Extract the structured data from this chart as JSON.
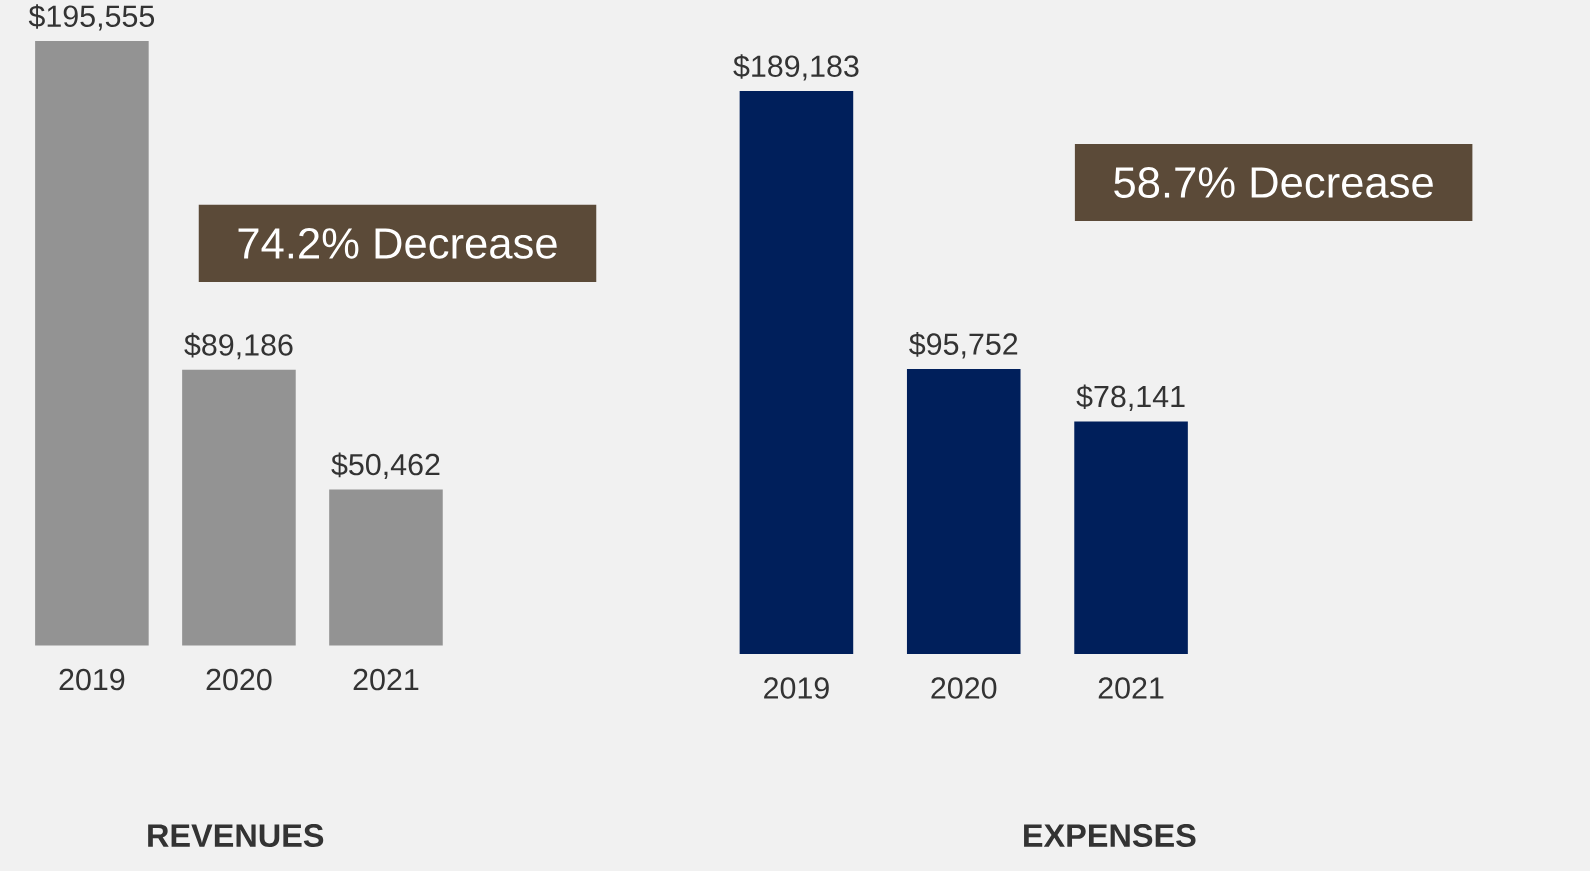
{
  "chart_data": [
    {
      "type": "bar",
      "title": "REVENUES",
      "categories": [
        "2019",
        "2020",
        "2021"
      ],
      "values": [
        195555,
        89186,
        50462
      ],
      "color": "#939393",
      "value_labels": [
        "$195,555",
        "$89,186",
        "$50,462"
      ],
      "annotations": [
        "74.2% Decrease"
      ]
    },
    {
      "type": "bar",
      "title": "EXPENSES",
      "categories": [
        "2019",
        "2020",
        "2021"
      ],
      "values": [
        189183,
        95752,
        78141
      ],
      "color": "#001f5b",
      "value_labels": [
        "$189,183",
        "$95,752",
        "$78,141"
      ],
      "annotations": [
        "58.7% Decrease"
      ]
    }
  ]
}
